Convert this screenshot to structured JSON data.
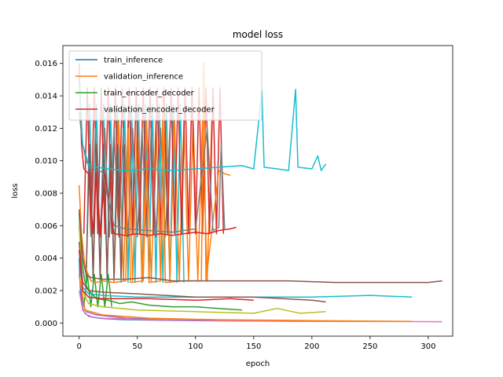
{
  "chart_data": {
    "type": "line",
    "title": "model loss",
    "xlabel": "epoch",
    "ylabel": "loss",
    "xlim": [
      -14,
      321
    ],
    "ylim": [
      -0.00081,
      0.0171
    ],
    "xticks": [
      0,
      50,
      100,
      150,
      200,
      250,
      300
    ],
    "xtick_labels": [
      "0",
      "50",
      "100",
      "150",
      "200",
      "250",
      "300"
    ],
    "yticks": [
      0.0,
      0.002,
      0.004,
      0.006,
      0.008,
      0.01,
      0.012,
      0.014,
      0.016
    ],
    "ytick_labels": [
      "0.000",
      "0.002",
      "0.004",
      "0.006",
      "0.008",
      "0.010",
      "0.012",
      "0.014",
      "0.016"
    ],
    "grid": false,
    "legend_position": "top-left",
    "legend": [
      {
        "name": "train_inference",
        "color": "#1f77b4"
      },
      {
        "name": "validation_inference",
        "color": "#ff7f0e"
      },
      {
        "name": "train_encoder_decoder",
        "color": "#2ca02c"
      },
      {
        "name": "validation_encoder_decoder",
        "color": "#d62728"
      }
    ],
    "series": [
      {
        "color": "#1f77b4",
        "points": [
          [
            0,
            0.004
          ],
          [
            1,
            0.0022
          ],
          [
            2,
            0.0013
          ],
          [
            3,
            0.0009
          ],
          [
            5,
            0.0006
          ],
          [
            8,
            0.00045
          ],
          [
            12,
            0.00035
          ],
          [
            20,
            0.00028
          ],
          [
            35,
            0.00022
          ],
          [
            60,
            0.00018
          ],
          [
            100,
            0.00015
          ],
          [
            150,
            0.00012
          ],
          [
            188,
            0.00011
          ]
        ]
      },
      {
        "color": "#ff7f0e",
        "points": [
          [
            0,
            0.0085
          ],
          [
            2,
            0.0055
          ],
          [
            5,
            0.0035
          ],
          [
            10,
            0.0026
          ],
          [
            15,
            0.0025
          ],
          [
            20,
            0.0026
          ],
          [
            30,
            0.0025
          ],
          [
            40,
            0.0026
          ],
          [
            42,
            0.012
          ],
          [
            44,
            0.0025
          ],
          [
            55,
            0.0026
          ],
          [
            58,
            0.01
          ],
          [
            60,
            0.0025
          ],
          [
            70,
            0.0026
          ],
          [
            72,
            0.014
          ],
          [
            74,
            0.0025
          ],
          [
            90,
            0.0026
          ],
          [
            105,
            0.0026
          ],
          [
            107,
            0.0161
          ],
          [
            109,
            0.0026
          ],
          [
            120,
            0.0094
          ],
          [
            125,
            0.0092
          ],
          [
            130,
            0.0091
          ]
        ]
      },
      {
        "color": "#2ca02c",
        "points": [
          [
            0,
            0.0068
          ],
          [
            2,
            0.004
          ],
          [
            5,
            0.0025
          ],
          [
            8,
            0.002
          ],
          [
            15,
            0.0015
          ],
          [
            25,
            0.0014
          ],
          [
            35,
            0.0012
          ],
          [
            45,
            0.0013
          ],
          [
            60,
            0.0011
          ],
          [
            80,
            0.001
          ],
          [
            100,
            0.001
          ],
          [
            120,
            0.0009
          ],
          [
            140,
            0.0008
          ]
        ]
      },
      {
        "color": "#d62728",
        "points": [
          [
            0,
            0.016
          ],
          [
            2,
            0.011
          ],
          [
            4,
            0.0095
          ],
          [
            8,
            0.0092
          ],
          [
            12,
            0.0055
          ],
          [
            14,
            0.0093
          ],
          [
            18,
            0.0054
          ],
          [
            22,
            0.0092
          ],
          [
            30,
            0.0055
          ],
          [
            40,
            0.0054
          ],
          [
            50,
            0.0055
          ],
          [
            60,
            0.0054
          ],
          [
            70,
            0.0055
          ],
          [
            80,
            0.0054
          ],
          [
            90,
            0.0055
          ],
          [
            100,
            0.0056
          ],
          [
            110,
            0.0055
          ],
          [
            120,
            0.0057
          ],
          [
            130,
            0.0058
          ],
          [
            135,
            0.0059
          ]
        ]
      },
      {
        "color": "#9467bd",
        "points": [
          [
            0,
            0.003
          ],
          [
            3,
            0.0012
          ],
          [
            6,
            0.0007
          ],
          [
            15,
            0.0005
          ],
          [
            40,
            0.0003
          ],
          [
            80,
            0.0002
          ],
          [
            140,
            0.00015
          ],
          [
            220,
            0.0001
          ],
          [
            285,
            0.0001
          ]
        ]
      },
      {
        "color": "#8c564b",
        "points": [
          [
            0,
            0.007
          ],
          [
            3,
            0.004
          ],
          [
            6,
            0.003
          ],
          [
            10,
            0.0028
          ],
          [
            20,
            0.0027
          ],
          [
            40,
            0.0027
          ],
          [
            60,
            0.0028
          ],
          [
            80,
            0.0026
          ],
          [
            100,
            0.0026
          ],
          [
            140,
            0.0026
          ],
          [
            180,
            0.0026
          ],
          [
            220,
            0.0025
          ],
          [
            260,
            0.0025
          ],
          [
            300,
            0.0025
          ],
          [
            312,
            0.0026
          ]
        ]
      },
      {
        "color": "#e377c2",
        "points": [
          [
            0,
            0.002
          ],
          [
            3,
            0.0008
          ],
          [
            8,
            0.0004
          ],
          [
            20,
            0.0003
          ],
          [
            60,
            0.0002
          ],
          [
            120,
            0.00015
          ],
          [
            200,
            0.0001
          ],
          [
            260,
            0.0001
          ],
          [
            312,
            8e-05
          ]
        ]
      },
      {
        "color": "#7f7f7f",
        "points": [
          [
            0,
            0.013
          ],
          [
            3,
            0.011
          ],
          [
            6,
            0.01
          ],
          [
            10,
            0.0095
          ],
          [
            20,
            0.0093
          ],
          [
            30,
            0.006
          ],
          [
            40,
            0.0058
          ],
          [
            60,
            0.0057
          ],
          [
            80,
            0.0056
          ],
          [
            100,
            0.0058
          ],
          [
            110,
            0.012
          ],
          [
            115,
            0.0057
          ],
          [
            120,
            0.0059
          ],
          [
            122,
            0.011
          ],
          [
            125,
            0.0058
          ]
        ]
      },
      {
        "color": "#bcbd22",
        "points": [
          [
            0,
            0.006
          ],
          [
            3,
            0.002
          ],
          [
            8,
            0.0012
          ],
          [
            20,
            0.001
          ],
          [
            50,
            0.0008
          ],
          [
            100,
            0.0007
          ],
          [
            150,
            0.0006
          ],
          [
            170,
            0.0009
          ],
          [
            190,
            0.0006
          ],
          [
            212,
            0.0007
          ]
        ]
      },
      {
        "color": "#17becf",
        "points": [
          [
            0,
            0.015
          ],
          [
            3,
            0.011
          ],
          [
            8,
            0.0098
          ],
          [
            15,
            0.0096
          ],
          [
            25,
            0.0095
          ],
          [
            40,
            0.0094
          ],
          [
            60,
            0.0095
          ],
          [
            80,
            0.0094
          ],
          [
            100,
            0.0095
          ],
          [
            120,
            0.0096
          ],
          [
            140,
            0.0097
          ],
          [
            150,
            0.0095
          ],
          [
            157,
            0.0143
          ],
          [
            159,
            0.0096
          ],
          [
            170,
            0.0095
          ],
          [
            180,
            0.0094
          ],
          [
            186,
            0.0144
          ],
          [
            188,
            0.0096
          ],
          [
            200,
            0.0095
          ],
          [
            205,
            0.0103
          ],
          [
            208,
            0.0094
          ],
          [
            212,
            0.0098
          ]
        ]
      },
      {
        "color": "#17becf",
        "points": [
          [
            0,
            0.004
          ],
          [
            3,
            0.0022
          ],
          [
            8,
            0.0018
          ],
          [
            20,
            0.0017
          ],
          [
            50,
            0.0016
          ],
          [
            100,
            0.0016
          ],
          [
            150,
            0.0016
          ],
          [
            200,
            0.0016
          ],
          [
            250,
            0.0017
          ],
          [
            286,
            0.0016
          ]
        ]
      },
      {
        "color": "#8c564b",
        "points": [
          [
            0,
            0.005
          ],
          [
            3,
            0.0025
          ],
          [
            8,
            0.002
          ],
          [
            20,
            0.0019
          ],
          [
            50,
            0.0018
          ],
          [
            100,
            0.0016
          ],
          [
            150,
            0.0016
          ],
          [
            200,
            0.0014
          ],
          [
            212,
            0.0013
          ]
        ]
      },
      {
        "color": "#ff7f0e",
        "points": [
          [
            0,
            0.003
          ],
          [
            5,
            0.0008
          ],
          [
            20,
            0.0005
          ],
          [
            60,
            0.0003
          ],
          [
            120,
            0.0002
          ],
          [
            200,
            0.00015
          ],
          [
            286,
            0.0001
          ]
        ]
      },
      {
        "color": "#d62728",
        "points": [
          [
            0,
            0.0045
          ],
          [
            3,
            0.002
          ],
          [
            8,
            0.0016
          ],
          [
            20,
            0.0015
          ],
          [
            60,
            0.0015
          ],
          [
            100,
            0.0014
          ],
          [
            130,
            0.0015
          ],
          [
            150,
            0.0014
          ]
        ]
      }
    ],
    "spikes": [
      {
        "color": "#17becf",
        "x_start": 6,
        "x_end": 90,
        "step": 3,
        "low": 0.0025,
        "high": 0.0135
      },
      {
        "color": "#ff7f0e",
        "x_start": 30,
        "x_end": 115,
        "step": 4,
        "low": 0.0026,
        "high": 0.0125
      },
      {
        "color": "#d62728",
        "x_start": 4,
        "x_end": 125,
        "step": 3,
        "low": 0.0055,
        "high": 0.0145
      },
      {
        "color": "#7f7f7f",
        "x_start": 10,
        "x_end": 80,
        "step": 4,
        "low": 0.0053,
        "high": 0.012
      },
      {
        "color": "#8c564b",
        "x_start": 6,
        "x_end": 40,
        "step": 3,
        "low": 0.0028,
        "high": 0.011
      },
      {
        "color": "#2ca02c",
        "x_start": 4,
        "x_end": 30,
        "step": 3,
        "low": 0.001,
        "high": 0.003
      }
    ]
  }
}
